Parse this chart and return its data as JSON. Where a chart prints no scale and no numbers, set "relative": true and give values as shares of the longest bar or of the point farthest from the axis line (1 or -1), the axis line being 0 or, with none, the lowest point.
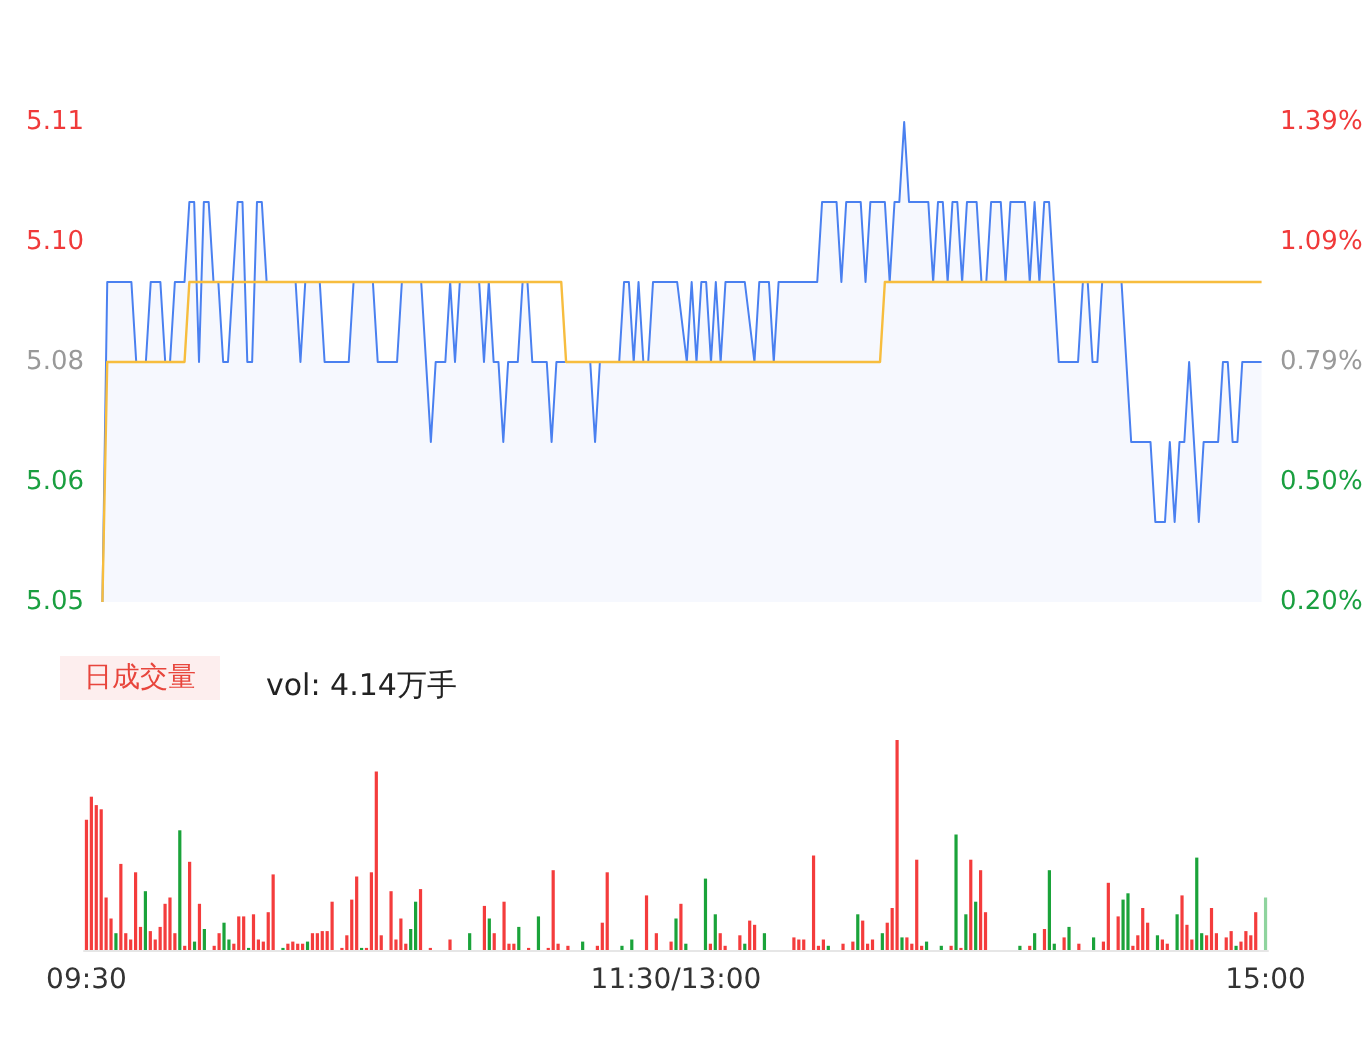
{
  "chart_data": [
    {
      "type": "area",
      "categories": [
        null,
        null,
        null,
        null,
        null,
        null,
        null,
        null,
        null,
        null,
        null,
        null,
        null,
        null,
        null,
        null,
        null,
        null,
        null,
        null,
        null,
        null,
        null,
        null,
        null,
        null,
        null,
        null,
        null,
        null,
        null,
        null,
        null,
        null,
        null,
        null,
        null,
        null,
        null,
        null,
        null,
        null,
        null,
        null,
        null,
        null,
        null,
        null,
        null,
        null,
        null,
        null,
        null,
        null,
        null,
        null,
        null,
        null,
        null,
        null,
        null,
        null,
        null,
        null,
        null,
        null,
        null,
        null,
        null,
        null,
        null,
        null,
        null,
        null,
        null,
        null,
        null,
        null,
        null,
        null,
        null,
        null,
        null,
        null,
        null,
        null,
        null,
        null,
        null,
        null,
        null,
        null,
        null,
        null,
        null,
        null,
        null,
        null,
        null,
        null,
        null,
        null,
        null,
        null,
        null,
        null,
        null,
        null,
        null,
        null,
        null,
        null,
        null,
        null,
        null,
        null,
        null,
        null,
        null,
        null,
        null,
        null,
        null,
        null,
        null,
        null,
        null,
        null,
        null,
        null,
        null,
        null,
        null,
        null,
        null,
        null,
        null,
        null,
        null,
        null,
        null,
        null,
        null,
        null,
        null,
        null,
        null,
        null,
        null,
        null,
        null,
        null,
        null,
        null,
        null,
        null,
        null,
        null,
        null,
        null,
        null,
        null,
        null,
        null,
        null,
        null,
        null,
        null,
        null,
        null,
        null,
        null,
        null,
        null,
        null,
        null,
        null,
        null,
        null,
        null,
        null,
        null,
        null,
        null,
        null,
        null,
        null,
        null,
        null,
        null,
        null,
        null,
        null,
        null,
        null,
        null,
        null,
        null,
        null,
        null,
        null,
        null,
        null,
        null,
        null,
        null,
        null,
        null,
        null,
        null,
        null,
        null,
        null,
        null,
        null,
        null,
        null,
        null,
        null,
        null,
        null,
        null,
        null,
        null,
        null,
        null,
        null,
        null,
        null,
        null,
        null,
        null,
        null,
        null,
        null,
        null,
        null,
        null,
        null,
        null,
        null
      ],
      "tick_labels": "y",
      "ylim": [
        5.05,
        5.11
      ],
      "yticks": [
        {
          "value": 5.05,
          "label": "5.05"
        },
        {
          "value": 5.065,
          "label": "5.06"
        },
        {
          "value": 5.08,
          "label": "5.08"
        },
        {
          "value": 5.095,
          "label": "5.10"
        },
        {
          "value": 5.11,
          "label": "5.11"
        }
      ],
      "y2lim": [
        0.2,
        1.39
      ],
      "y2ticks": [
        {
          "value": 0.2,
          "label": "0.20%"
        },
        {
          "value": 0.4975,
          "label": "0.50%"
        },
        {
          "value": 0.795,
          "label": "0.79%"
        },
        {
          "value": 1.0925,
          "label": "1.09%"
        },
        {
          "value": 1.39,
          "label": "1.39%"
        }
      ],
      "grid": false,
      "series": [
        {
          "color": "#4a80f0",
          "values": [
            5.05,
            5.09,
            5.09,
            5.09,
            5.09,
            5.09,
            5.09,
            5.08,
            5.08,
            5.08,
            5.09,
            5.09,
            5.09,
            5.08,
            5.08,
            5.09,
            5.09,
            5.09,
            5.1,
            5.1,
            5.08,
            5.1,
            5.1,
            5.09,
            5.09,
            5.08,
            5.08,
            null,
            5.1,
            5.1,
            5.08,
            5.08,
            5.1,
            5.1,
            5.09,
            5.09,
            5.09,
            5.09,
            5.09,
            5.09,
            5.09,
            5.08,
            5.09,
            5.09,
            5.09,
            5.09,
            5.08,
            5.08,
            5.08,
            5.08,
            5.08,
            5.08,
            5.09,
            5.09,
            5.09,
            5.09,
            5.09,
            5.08,
            5.08,
            5.08,
            5.08,
            5.08,
            5.09,
            5.09,
            5.09,
            5.09,
            5.09,
            null,
            5.07,
            5.08,
            5.08,
            5.08,
            5.09,
            5.08,
            5.09,
            5.09,
            5.09,
            5.09,
            5.09,
            5.08,
            5.09,
            5.08,
            5.08,
            5.07,
            5.08,
            5.08,
            5.08,
            5.09,
            5.09,
            5.08,
            5.08,
            5.08,
            5.08,
            5.07,
            5.08,
            5.08,
            5.08,
            5.08,
            5.08,
            5.08,
            5.08,
            5.08,
            5.07,
            5.08,
            5.08,
            5.08,
            5.08,
            5.08,
            5.09,
            5.09,
            5.08,
            5.09,
            5.08,
            5.08,
            5.09,
            5.09,
            5.09,
            5.09,
            5.09,
            5.09,
            null,
            5.08,
            5.09,
            5.08,
            5.09,
            5.09,
            5.08,
            5.09,
            5.08,
            5.09,
            5.09,
            5.09,
            5.09,
            5.09,
            null,
            5.08,
            5.09,
            5.09,
            5.09,
            5.08,
            5.09,
            5.09,
            5.09,
            5.09,
            5.09,
            5.09,
            5.09,
            5.09,
            5.09,
            5.1,
            5.1,
            5.1,
            5.1,
            5.09,
            5.1,
            5.1,
            5.1,
            5.1,
            5.09,
            5.1,
            5.1,
            5.1,
            5.1,
            5.09,
            5.1,
            5.1,
            5.11,
            5.1,
            5.1,
            5.1,
            5.1,
            5.1,
            5.09,
            5.1,
            5.1,
            5.09,
            5.1,
            5.1,
            5.09,
            5.1,
            5.1,
            5.1,
            5.09,
            5.09,
            5.1,
            5.1,
            5.1,
            5.09,
            5.1,
            5.1,
            5.1,
            5.1,
            5.09,
            5.1,
            5.09,
            5.1,
            5.1,
            null,
            5.08,
            5.08,
            5.08,
            5.08,
            5.08,
            5.09,
            5.09,
            5.08,
            5.08,
            5.09,
            5.09,
            5.09,
            5.09,
            5.09,
            null,
            5.07,
            5.07,
            5.07,
            5.07,
            5.07,
            5.06,
            5.06,
            5.06,
            5.07,
            5.06,
            5.07,
            5.07,
            5.08,
            null,
            5.06,
            5.07,
            5.07,
            5.07,
            5.07,
            5.08,
            5.08,
            5.07,
            5.07,
            5.08,
            5.08,
            5.08,
            5.08,
            5.08
          ]
        },
        {
          "type": "line",
          "color": "#f7bd3e",
          "values": [
            5.05,
            5.08,
            5.08,
            5.08,
            5.08,
            5.08,
            5.08,
            5.08,
            5.08,
            5.08,
            5.08,
            5.08,
            5.08,
            5.08,
            5.08,
            5.08,
            5.08,
            5.08,
            5.09,
            5.09,
            5.09,
            5.09,
            5.09,
            5.09,
            5.09,
            5.09,
            5.09,
            5.09,
            5.09,
            5.09,
            5.09,
            5.09,
            5.09,
            5.09,
            5.09,
            5.09,
            5.09,
            5.09,
            5.09,
            5.09,
            5.09,
            5.09,
            5.09,
            5.09,
            5.09,
            5.09,
            5.09,
            5.09,
            5.09,
            5.09,
            5.09,
            5.09,
            5.09,
            5.09,
            5.09,
            5.09,
            5.09,
            5.09,
            5.09,
            5.09,
            5.09,
            5.09,
            5.09,
            5.09,
            5.09,
            5.09,
            5.09,
            5.09,
            5.09,
            5.09,
            5.09,
            5.09,
            5.09,
            5.09,
            5.09,
            5.09,
            5.09,
            5.09,
            5.09,
            5.09,
            5.09,
            5.09,
            5.09,
            5.09,
            5.09,
            5.09,
            5.09,
            5.09,
            5.09,
            5.09,
            5.09,
            5.09,
            5.09,
            5.09,
            5.09,
            5.09,
            5.08,
            5.08,
            5.08,
            5.08,
            5.08,
            5.08,
            5.08,
            5.08,
            5.08,
            5.08,
            5.08,
            5.08,
            5.08,
            5.08,
            5.08,
            5.08,
            5.08,
            5.08,
            5.08,
            5.08,
            5.08,
            5.08,
            5.08,
            5.08,
            5.08,
            5.08,
            5.08,
            5.08,
            5.08,
            5.08,
            5.08,
            5.08,
            5.08,
            5.08,
            5.08,
            5.08,
            5.08,
            5.08,
            5.08,
            5.08,
            5.08,
            5.08,
            5.08,
            5.08,
            5.08,
            5.08,
            5.08,
            5.08,
            5.08,
            5.08,
            5.08,
            5.08,
            5.08,
            5.08,
            5.08,
            5.08,
            5.08,
            5.08,
            5.08,
            5.08,
            5.08,
            5.08,
            5.08,
            5.08,
            5.08,
            5.08,
            5.09,
            5.09,
            5.09,
            5.09,
            5.09,
            5.09,
            5.09,
            5.09,
            5.09,
            5.09,
            5.09,
            5.09,
            5.09,
            5.09,
            5.09,
            5.09,
            5.09,
            5.09,
            5.09,
            5.09,
            5.09,
            5.09,
            5.09,
            5.09,
            5.09,
            5.09,
            5.09,
            5.09,
            5.09,
            5.09,
            5.09,
            5.09,
            5.09,
            5.09,
            5.09,
            5.09,
            5.09,
            5.09,
            5.09,
            5.09,
            5.09,
            5.09,
            5.09,
            5.09,
            5.09,
            5.09,
            5.09,
            5.09,
            5.09,
            5.09,
            5.09,
            5.09,
            5.09,
            5.09,
            5.09,
            5.09,
            5.09,
            5.09,
            5.09,
            5.09,
            5.09,
            5.09,
            5.09,
            5.09,
            5.09,
            5.09,
            5.09,
            5.09,
            5.09,
            5.09,
            5.09,
            5.09,
            5.09,
            5.09,
            5.09,
            5.09,
            5.09,
            5.09,
            5.09
          ]
        }
      ]
    },
    {
      "type": "bar",
      "title": "日成交量",
      "subtitle": "vol: 4.14万手",
      "relative": true,
      "categories": [
        "09:30",
        null,
        null,
        null,
        null,
        null,
        null,
        null,
        null,
        null,
        null,
        null,
        null,
        null,
        null,
        null,
        null,
        null,
        null,
        null,
        null,
        null,
        null,
        null,
        null,
        null,
        null,
        null,
        null,
        null,
        null,
        null,
        null,
        null,
        null,
        null,
        null,
        null,
        null,
        null,
        null,
        null,
        null,
        null,
        null,
        null,
        null,
        null,
        null,
        null,
        null,
        null,
        null,
        null,
        null,
        null,
        null,
        null,
        null,
        null,
        null,
        null,
        null,
        null,
        null,
        null,
        null,
        null,
        null,
        null,
        null,
        null,
        null,
        null,
        null,
        null,
        null,
        null,
        null,
        null,
        null,
        null,
        null,
        null,
        null,
        null,
        null,
        null,
        null,
        null,
        null,
        null,
        null,
        null,
        null,
        null,
        null,
        null,
        null,
        null,
        null,
        null,
        null,
        null,
        null,
        null,
        null,
        null,
        null,
        null,
        null,
        null,
        null,
        null,
        null,
        null,
        null,
        null,
        null,
        null,
        "11:30/13:00",
        null,
        null,
        null,
        null,
        null,
        null,
        null,
        null,
        null,
        null,
        null,
        null,
        null,
        null,
        null,
        null,
        null,
        null,
        null,
        null,
        null,
        null,
        null,
        null,
        null,
        null,
        null,
        null,
        null,
        null,
        null,
        null,
        null,
        null,
        null,
        null,
        null,
        null,
        null,
        null,
        null,
        null,
        null,
        null,
        null,
        null,
        null,
        null,
        null,
        null,
        null,
        null,
        null,
        null,
        null,
        null,
        null,
        null,
        null,
        null,
        null,
        null,
        null,
        null,
        null,
        null,
        null,
        null,
        null,
        null,
        null,
        null,
        null,
        null,
        null,
        null,
        null,
        null,
        null,
        null,
        null,
        null,
        null,
        null,
        null,
        null,
        null,
        null,
        null,
        null,
        null,
        null,
        null,
        null,
        null,
        null,
        null,
        null,
        null,
        null,
        null,
        null,
        null,
        null,
        null,
        null,
        null,
        null,
        null,
        null,
        null,
        null,
        null,
        null,
        null,
        null,
        null,
        null,
        null,
        "15:00"
      ],
      "tick_labels": "x",
      "grid": false,
      "series": [
        {
          "values": [
            0.62,
            0.73,
            0.69,
            0.67,
            0.25,
            0.15,
            0.08,
            0.41,
            0.08,
            0.05,
            0.37,
            0.11,
            0.28,
            0.09,
            0.05,
            0.11,
            0.22,
            0.25,
            0.08,
            0.57,
            0.02,
            0.42,
            0.04,
            0.22,
            0.1,
            null,
            0.02,
            0.08,
            0.13,
            0.05,
            0.03,
            0.16,
            0.16,
            0.01,
            0.17,
            0.05,
            0.04,
            0.18,
            0.36,
            null,
            0.01,
            0.03,
            0.04,
            0.03,
            0.03,
            0.04,
            0.08,
            0.08,
            0.09,
            0.09,
            0.23,
            null,
            0.01,
            0.07,
            0.24,
            0.35,
            0.01,
            0.01,
            0.37,
            0.85,
            0.07,
            null,
            0.28,
            0.05,
            0.15,
            0.03,
            0.1,
            0.23,
            0.29,
            null,
            0.01,
            null,
            null,
            null,
            0.05,
            null,
            null,
            null,
            0.08,
            null,
            null,
            0.21,
            0.15,
            0.08,
            null,
            0.23,
            0.03,
            0.03,
            0.11,
            null,
            0.01,
            null,
            0.16,
            null,
            0.01,
            0.38,
            0.03,
            null,
            0.02,
            null,
            null,
            0.04,
            null,
            null,
            0.02,
            0.13,
            0.37,
            null,
            null,
            0.02,
            null,
            0.05,
            null,
            null,
            0.26,
            null,
            0.08,
            null,
            null,
            0.04,
            0.15,
            0.22,
            0.03,
            null,
            null,
            null,
            0.34,
            0.03,
            0.17,
            0.08,
            0.02,
            null,
            null,
            0.07,
            0.03,
            0.14,
            0.12,
            null,
            0.08,
            null,
            null,
            null,
            null,
            null,
            0.06,
            0.05,
            0.05,
            null,
            0.45,
            0.02,
            0.05,
            0.02,
            null,
            null,
            0.03,
            null,
            0.04,
            0.17,
            0.14,
            0.03,
            0.05,
            null,
            0.08,
            0.13,
            0.2,
            1,
            0.06,
            0.06,
            0.03,
            0.43,
            0.02,
            0.04,
            null,
            null,
            0.02,
            null,
            0.02,
            0.55,
            0.01,
            0.17,
            0.43,
            0.23,
            0.38,
            0.18,
            null,
            null,
            null,
            null,
            null,
            null,
            0.02,
            null,
            0.02,
            0.08,
            null,
            0.1,
            0.38,
            0.03,
            null,
            0.06,
            0.11,
            null,
            0.03,
            null,
            null,
            0.06,
            null,
            0.04,
            0.32,
            null,
            0.16,
            0.24,
            0.27,
            0.02,
            0.07,
            0.2,
            0.13,
            null,
            0.07,
            0.05,
            0.03,
            null,
            0.17,
            0.26,
            0.12,
            0.05,
            0.44,
            0.08,
            0.07,
            0.2,
            0.08,
            null,
            0.06,
            0.09,
            0.02,
            0.04,
            0.09,
            0.07,
            0.18,
            null,
            0.25
          ],
          "colors": [
            "#f43c3c",
            "#f43c3c",
            "#f43c3c",
            "#f43c3c",
            "#f43c3c",
            "#f43c3c",
            "#1aa33a",
            "#f43c3c",
            "#f43c3c",
            "#f43c3c",
            "#f43c3c",
            "#f43c3c",
            "#1aa33a",
            "#f43c3c",
            "#f43c3c",
            "#f43c3c",
            "#f43c3c",
            "#f43c3c",
            "#f43c3c",
            "#1aa33a",
            "#f43c3c",
            "#f43c3c",
            "#1aa33a",
            "#f43c3c",
            "#1aa33a",
            null,
            "#f43c3c",
            "#f43c3c",
            "#1aa33a",
            "#1aa33a",
            "#f43c3c",
            "#f43c3c",
            "#f43c3c",
            "#1aa33a",
            "#f43c3c",
            "#f43c3c",
            "#f43c3c",
            "#f43c3c",
            "#f43c3c",
            null,
            "#1aa33a",
            "#f43c3c",
            "#f43c3c",
            "#f43c3c",
            "#f43c3c",
            "#1aa33a",
            "#f43c3c",
            "#f43c3c",
            "#f43c3c",
            "#f43c3c",
            "#f43c3c",
            null,
            "#f43c3c",
            "#f43c3c",
            "#f43c3c",
            "#f43c3c",
            "#1aa33a",
            "#f43c3c",
            "#f43c3c",
            "#f43c3c",
            "#f43c3c",
            null,
            "#f43c3c",
            "#f43c3c",
            "#f43c3c",
            "#f43c3c",
            "#1aa33a",
            "#1aa33a",
            "#f43c3c",
            null,
            "#f43c3c",
            null,
            null,
            null,
            "#f43c3c",
            null,
            null,
            null,
            "#1aa33a",
            null,
            null,
            "#f43c3c",
            "#1aa33a",
            "#f43c3c",
            null,
            "#f43c3c",
            "#f43c3c",
            "#f43c3c",
            "#1aa33a",
            null,
            "#f43c3c",
            null,
            "#1aa33a",
            null,
            "#f43c3c",
            "#f43c3c",
            "#f43c3c",
            null,
            "#f43c3c",
            null,
            null,
            "#1aa33a",
            null,
            null,
            "#f43c3c",
            "#f43c3c",
            "#f43c3c",
            null,
            null,
            "#1aa33a",
            null,
            "#1aa33a",
            null,
            null,
            "#f43c3c",
            null,
            "#f43c3c",
            null,
            null,
            "#f43c3c",
            "#1aa33a",
            "#f43c3c",
            "#1aa33a",
            null,
            null,
            null,
            "#1aa33a",
            "#f43c3c",
            "#1aa33a",
            "#f43c3c",
            "#f43c3c",
            null,
            null,
            "#f43c3c",
            "#1aa33a",
            "#f43c3c",
            "#f43c3c",
            null,
            "#1aa33a",
            null,
            null,
            null,
            null,
            null,
            "#f43c3c",
            "#f43c3c",
            "#f43c3c",
            null,
            "#f43c3c",
            "#f43c3c",
            "#f43c3c",
            "#1aa33a",
            null,
            null,
            "#f43c3c",
            null,
            "#f43c3c",
            "#1aa33a",
            "#f43c3c",
            "#f43c3c",
            "#f43c3c",
            null,
            "#1aa33a",
            "#f43c3c",
            "#f43c3c",
            "#f43c3c",
            "#1aa33a",
            "#f43c3c",
            "#f43c3c",
            "#f43c3c",
            "#f43c3c",
            "#1aa33a",
            null,
            null,
            "#1aa33a",
            null,
            "#f43c3c",
            "#1aa33a",
            "#f43c3c",
            "#1aa33a",
            "#f43c3c",
            "#1aa33a",
            "#f43c3c",
            "#f43c3c",
            null,
            null,
            null,
            null,
            null,
            null,
            "#1aa33a",
            null,
            "#f43c3c",
            "#1aa33a",
            null,
            "#f43c3c",
            "#1aa33a",
            "#1aa33a",
            null,
            "#f43c3c",
            "#1aa33a",
            null,
            "#f43c3c",
            null,
            null,
            "#1aa33a",
            null,
            "#f43c3c",
            "#f43c3c",
            null,
            "#f43c3c",
            "#1aa33a",
            "#1aa33a",
            "#f43c3c",
            "#f43c3c",
            "#f43c3c",
            "#f43c3c",
            null,
            "#1aa33a",
            "#f43c3c",
            "#f43c3c",
            null,
            "#1aa33a",
            "#f43c3c",
            "#f43c3c",
            "#f43c3c",
            "#1aa33a",
            "#1aa33a",
            "#f43c3c",
            "#f43c3c",
            "#f43c3c",
            null,
            "#f43c3c",
            "#f43c3c",
            "#1aa33a",
            "#f43c3c",
            "#f43c3c",
            "#f43c3c",
            "#f43c3c",
            null,
            "#8fd49e"
          ]
        }
      ]
    }
  ]
}
